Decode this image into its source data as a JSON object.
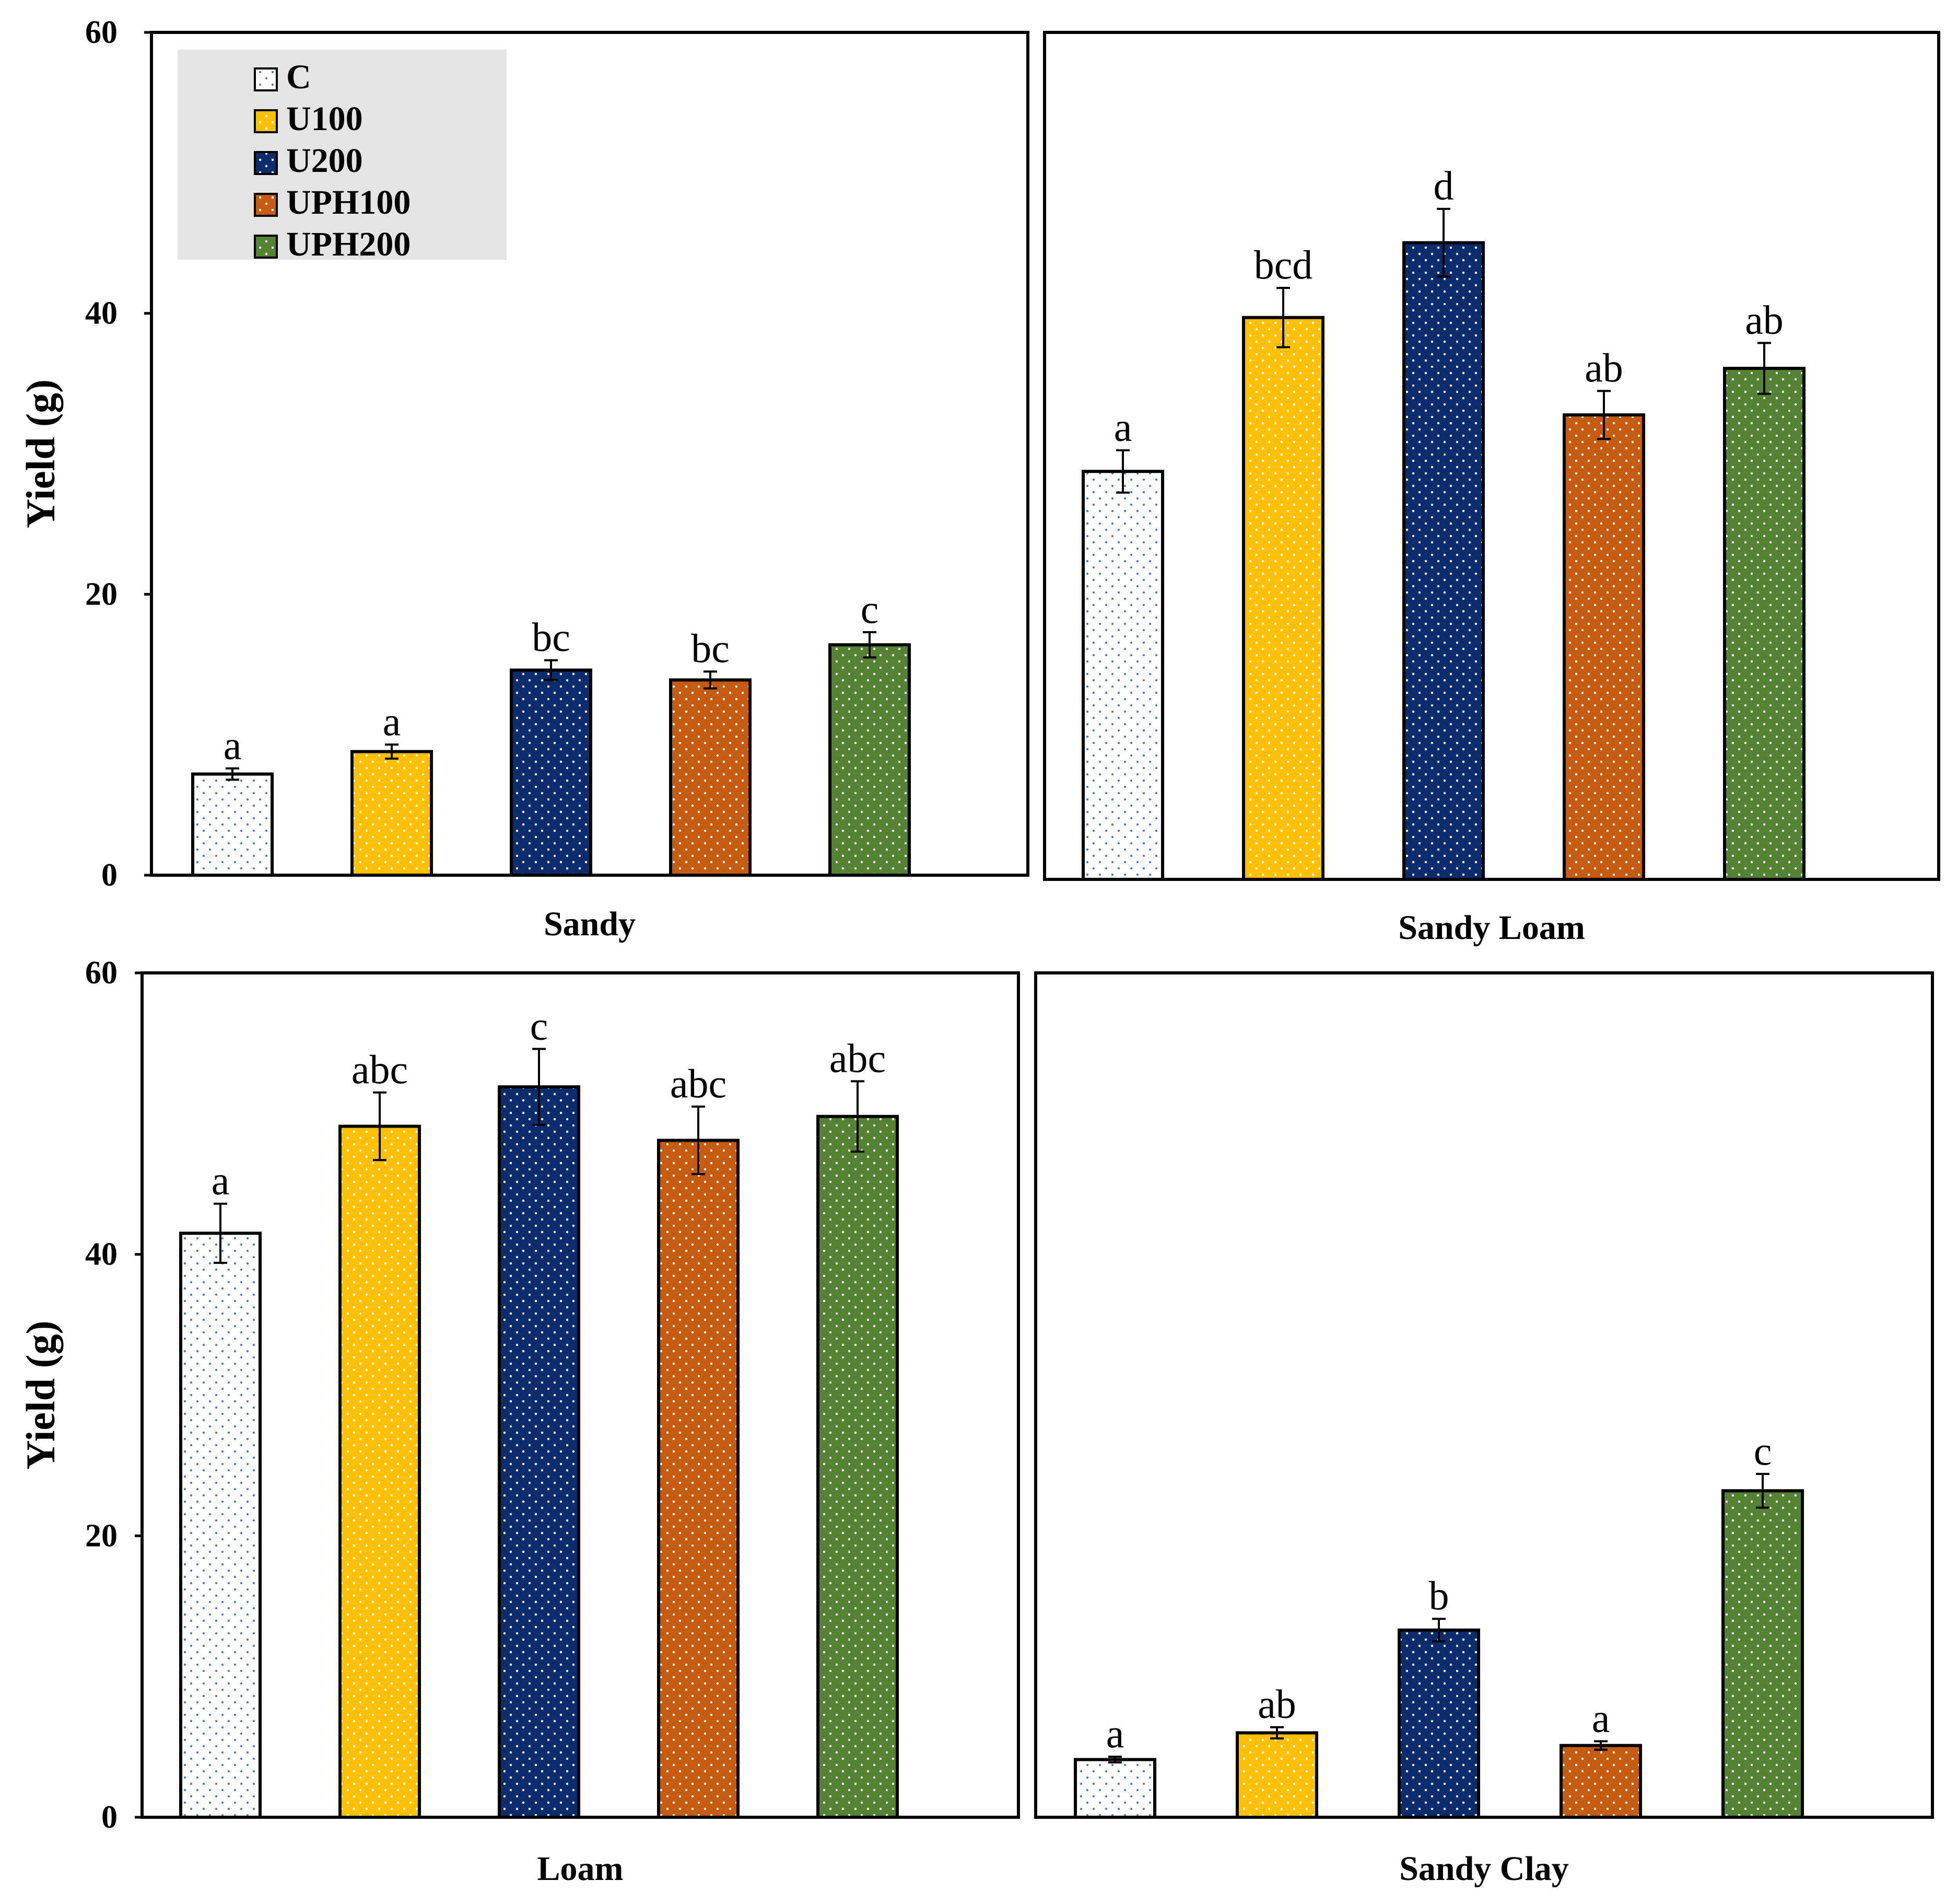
{
  "chart_data": [
    {
      "type": "bar",
      "panel": "top-left",
      "xlabel": "Sandy",
      "ylabel": "Yield (g)",
      "ylim": [
        0,
        60
      ],
      "yticks": [
        "0",
        "20",
        "40",
        "60"
      ],
      "legend_position": "top-left",
      "categories": [
        "C",
        "U100",
        "U200",
        "UPH100",
        "UPH200"
      ],
      "values": [
        7.2,
        8.8,
        14.6,
        13.9,
        16.4
      ],
      "errors": [
        0.4,
        0.5,
        0.7,
        0.6,
        0.9
      ],
      "letters": [
        "a",
        "a",
        "bc",
        "bc",
        "c"
      ]
    },
    {
      "type": "bar",
      "panel": "top-right",
      "xlabel": "Sandy Loam",
      "ylabel": "",
      "ylim": [
        0,
        60
      ],
      "yticks": [],
      "categories": [
        "C",
        "U100",
        "U200",
        "UPH100",
        "UPH200"
      ],
      "values": [
        28.9,
        39.8,
        45.1,
        32.9,
        36.2
      ],
      "errors": [
        1.5,
        2.1,
        2.4,
        1.7,
        1.8
      ],
      "letters": [
        "a",
        "bcd",
        "d",
        "ab",
        "ab"
      ]
    },
    {
      "type": "bar",
      "panel": "bottom-left",
      "xlabel": "Loam",
      "ylabel": "Yield (g)",
      "ylim": [
        0,
        60
      ],
      "yticks": [
        "0",
        "20",
        "40",
        "60"
      ],
      "categories": [
        "C",
        "U100",
        "U200",
        "UPH100",
        "UPH200"
      ],
      "values": [
        41.5,
        49.1,
        51.9,
        48.1,
        49.8
      ],
      "errors": [
        2.1,
        2.4,
        2.7,
        2.4,
        2.5
      ],
      "letters": [
        "a",
        "abc",
        "c",
        "abc",
        "abc"
      ]
    },
    {
      "type": "bar",
      "panel": "bottom-right",
      "xlabel": "Sandy Clay",
      "ylabel": "",
      "ylim": [
        0,
        60
      ],
      "yticks": [],
      "categories": [
        "C",
        "U100",
        "U200",
        "UPH100",
        "UPH200"
      ],
      "values": [
        4.1,
        6.0,
        13.3,
        5.1,
        23.2
      ],
      "errors": [
        0.2,
        0.4,
        0.8,
        0.3,
        1.2
      ],
      "letters": [
        "a",
        "ab",
        "b",
        "a",
        "c"
      ]
    }
  ],
  "legend": {
    "entries": [
      {
        "label": "C",
        "color": "#ffffff",
        "dot_color": "#4a7bc4"
      },
      {
        "label": "U100",
        "color": "#ffc000",
        "dot_color": "#ffffff"
      },
      {
        "label": "U200",
        "color": "#0c2c6e",
        "dot_color": "#ffffff"
      },
      {
        "label": "UPH100",
        "color": "#c55a11",
        "dot_color": "#ffffff"
      },
      {
        "label": "UPH200",
        "color": "#548235",
        "dot_color": "#ffffff"
      }
    ],
    "background": "#e4e4e4"
  }
}
